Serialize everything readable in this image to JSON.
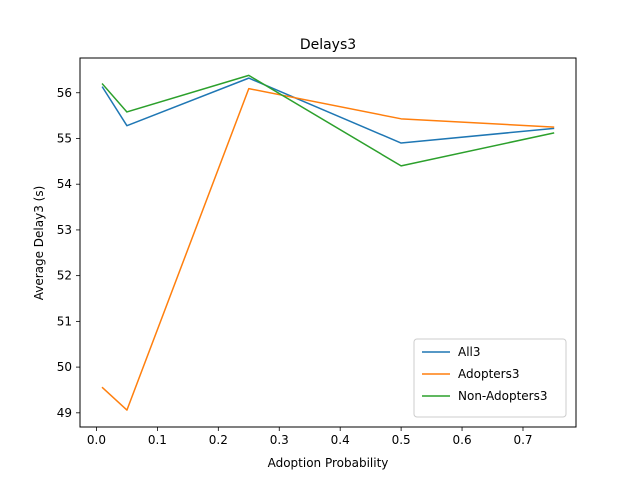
{
  "chart_data": {
    "type": "line",
    "title": "Delays3",
    "xlabel": "Adoption Probability",
    "ylabel": "Average Delay3 (s)",
    "x": [
      0.01,
      0.05,
      0.25,
      0.5,
      0.75
    ],
    "xlim": [
      -0.027,
      0.787
    ],
    "ylim": [
      48.69,
      56.76
    ],
    "xticks": [
      0.0,
      0.1,
      0.2,
      0.3,
      0.4,
      0.5,
      0.6,
      0.7
    ],
    "xtick_labels": [
      "0.0",
      "0.1",
      "0.2",
      "0.3",
      "0.4",
      "0.5",
      "0.6",
      "0.7"
    ],
    "yticks": [
      49,
      50,
      51,
      52,
      53,
      54,
      55,
      56
    ],
    "ytick_labels": [
      "49",
      "50",
      "51",
      "52",
      "53",
      "54",
      "55",
      "56"
    ],
    "grid": false,
    "legend_position": "lower-right",
    "series": [
      {
        "name": "All3",
        "color": "#1f77b4",
        "values": [
          56.12,
          55.28,
          56.32,
          54.9,
          55.22
        ]
      },
      {
        "name": "Adopters3",
        "color": "#ff7f0e",
        "values": [
          49.55,
          49.06,
          56.09,
          55.43,
          55.25
        ]
      },
      {
        "name": "Non-Adopters3",
        "color": "#2ca02c",
        "values": [
          56.19,
          55.58,
          56.38,
          54.4,
          55.12
        ]
      }
    ]
  }
}
